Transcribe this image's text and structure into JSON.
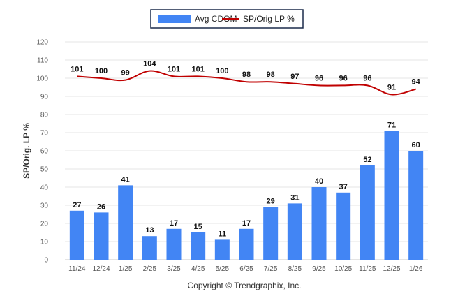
{
  "chart_data": {
    "type": "bar",
    "categories": [
      "11/24",
      "12/24",
      "1/25",
      "2/25",
      "3/25",
      "4/25",
      "5/25",
      "6/25",
      "7/25",
      "8/25",
      "9/25",
      "10/25",
      "11/25",
      "12/25",
      "1/26"
    ],
    "series": [
      {
        "name": "Avg CDOM",
        "type": "bar",
        "color": "#4285F4",
        "values": [
          27,
          26,
          41,
          13,
          17,
          15,
          11,
          17,
          29,
          31,
          40,
          37,
          52,
          71,
          60
        ],
        "labels": [
          "27",
          "26",
          "41",
          "13",
          "17",
          "15",
          "11",
          "17",
          "29",
          "31",
          "40",
          "37",
          "52",
          "71",
          "60"
        ]
      },
      {
        "name": "SP/Orig LP %",
        "type": "line",
        "color": "#C00000",
        "values": [
          101,
          100,
          99,
          104,
          101,
          101,
          100,
          98,
          98,
          97,
          96,
          96,
          96,
          91,
          94
        ],
        "labels": [
          "101",
          "100",
          "99",
          "104",
          "101",
          "101",
          "100",
          "98",
          "98",
          "97",
          "96",
          "96",
          "96",
          "91",
          "94"
        ]
      }
    ],
    "ylabel": "SP/Orig. LP %",
    "xlabel": "",
    "ylim": [
      0,
      120
    ],
    "yticks": [
      "0",
      "10",
      "20",
      "30",
      "40",
      "50",
      "60",
      "70",
      "80",
      "90",
      "100",
      "110",
      "120"
    ],
    "grid": true,
    "legend_position": "top-center"
  },
  "footer": {
    "copyright": "Copyright © Trendgraphix, Inc."
  }
}
